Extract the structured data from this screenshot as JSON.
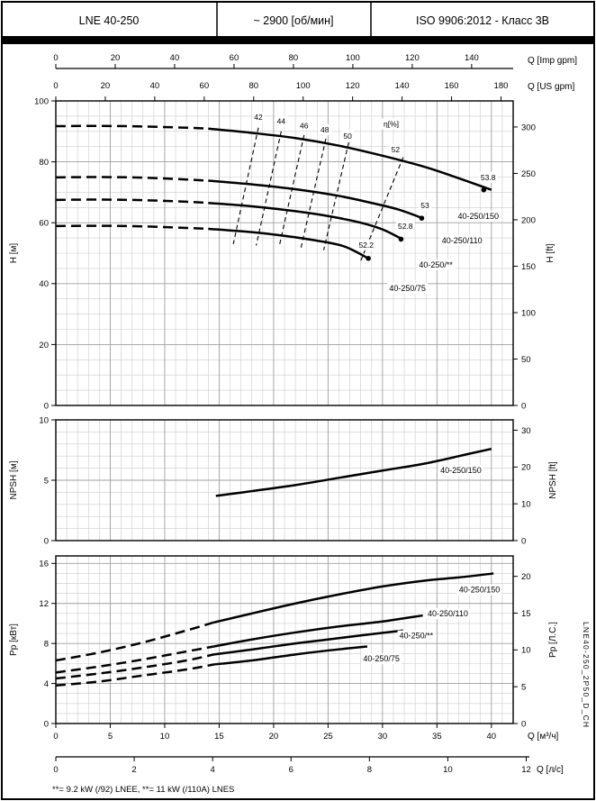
{
  "header": {
    "model": "LNE 40-250",
    "speed": "~ 2900 [об/мин]",
    "standard": "ISO 9906:2012 - Класс 3В"
  },
  "footer": {
    "note": "**= 9.2 kW (/92) LNEE,  **= 11 kW (/110A) LNES"
  },
  "side_label": "LNE40-250_2P50_D_CH",
  "axes": {
    "x_max_m3h": 42,
    "grid_x_minor": 1,
    "grid_x_major": 5,
    "top": [
      {
        "label": "Q [Imp gpm]",
        "m3h_per_unit": 0.27276,
        "ticks": [
          0,
          20,
          40,
          60,
          80,
          100,
          120,
          140
        ]
      },
      {
        "label": "Q [US gpm]",
        "m3h_per_unit": 0.22712,
        "ticks": [
          0,
          20,
          40,
          60,
          80,
          100,
          120,
          140,
          160,
          180
        ]
      }
    ],
    "bottom": [
      {
        "label": "Q [м³/ч]",
        "m3h_per_unit": 1,
        "ticks": [
          0,
          5,
          10,
          15,
          20,
          25,
          30,
          35,
          40
        ]
      },
      {
        "label": "Q [л/с]",
        "m3h_per_unit": 3.6,
        "ticks": [
          0,
          2,
          4,
          6,
          8,
          10,
          12
        ]
      }
    ]
  },
  "chart_data": [
    {
      "type": "line",
      "name": "head-flow",
      "ylabel_left": "H [м]",
      "ylabel_right": "H [ft]",
      "xlabel": "Q [м³/ч]",
      "ylim": [
        0,
        100
      ],
      "yticks_left": [
        0,
        20,
        40,
        60,
        80,
        100
      ],
      "yticks_right": [
        0,
        50,
        100,
        150,
        200,
        250,
        300
      ],
      "right_unit_per_left": 0.3048,
      "grid_minor_y": 5,
      "grid_major_y": 20,
      "series": [
        {
          "name": "40-250/150",
          "dash_until": 14,
          "label_at": [
            38.8,
            61.3
          ],
          "points": [
            [
              0,
              91.7
            ],
            [
              4,
              91.8
            ],
            [
              8,
              91.6
            ],
            [
              12,
              91.2
            ],
            [
              14,
              90.9
            ],
            [
              18,
              89.5
            ],
            [
              22,
              87.8
            ],
            [
              26,
              85.3
            ],
            [
              30,
              82.0
            ],
            [
              34,
              78.2
            ],
            [
              37,
              74.6
            ],
            [
              40,
              70.8
            ]
          ]
        },
        {
          "name": "40-250/110",
          "dash_until": 14,
          "label_at": [
            37.3,
            53.3
          ],
          "points": [
            [
              0,
              74.9
            ],
            [
              4,
              75.0
            ],
            [
              8,
              74.8
            ],
            [
              12,
              74.2
            ],
            [
              14,
              73.8
            ],
            [
              18,
              72.6
            ],
            [
              22,
              71.0
            ],
            [
              26,
              68.8
            ],
            [
              29,
              66.5
            ],
            [
              31.5,
              64.3
            ],
            [
              33.6,
              61.6
            ]
          ]
        },
        {
          "name": "40-250/**",
          "dash_until": 14,
          "label_at": [
            34.9,
            45.3
          ],
          "points": [
            [
              0,
              67.5
            ],
            [
              4,
              67.6
            ],
            [
              8,
              67.4
            ],
            [
              12,
              66.9
            ],
            [
              14,
              66.5
            ],
            [
              18,
              65.4
            ],
            [
              22,
              63.8
            ],
            [
              25,
              62.2
            ],
            [
              28,
              60.0
            ],
            [
              30,
              57.8
            ],
            [
              31.7,
              54.8
            ]
          ]
        },
        {
          "name": "40-250/75",
          "dash_until": 14,
          "label_at": [
            32.3,
            37.6
          ],
          "points": [
            [
              0,
              58.9
            ],
            [
              4,
              59.0
            ],
            [
              8,
              58.8
            ],
            [
              12,
              58.3
            ],
            [
              14,
              58.0
            ],
            [
              18,
              56.9
            ],
            [
              21,
              55.7
            ],
            [
              24,
              54.1
            ],
            [
              26.5,
              52.2
            ],
            [
              28.7,
              48.3
            ]
          ]
        }
      ],
      "efficiency_lines": [
        {
          "value": 42,
          "from": [
            18.6,
            91.2
          ],
          "to": [
            16.3,
            53.0
          ]
        },
        {
          "value": 44,
          "from": [
            20.7,
            90.0
          ],
          "to": [
            18.4,
            52.5
          ]
        },
        {
          "value": 46,
          "from": [
            22.8,
            88.8
          ],
          "to": [
            20.5,
            52.0
          ]
        },
        {
          "value": 48,
          "from": [
            24.8,
            87.6
          ],
          "to": [
            22.5,
            51.5
          ]
        },
        {
          "value": 50,
          "from": [
            26.9,
            86.4
          ],
          "to": [
            24.6,
            51.0
          ]
        },
        {
          "value": 52,
          "from": [
            31.9,
            81.5
          ],
          "to": [
            28.0,
            47.5
          ]
        }
      ],
      "annotations": [
        {
          "text": "42",
          "at": [
            18.6,
            93.8
          ]
        },
        {
          "text": "44",
          "at": [
            20.7,
            92.4
          ]
        },
        {
          "text": "46",
          "at": [
            22.8,
            91.0
          ]
        },
        {
          "text": "48",
          "at": [
            24.7,
            89.6
          ]
        },
        {
          "text": "50",
          "at": [
            26.8,
            87.6
          ]
        },
        {
          "text": "η[%]",
          "at": [
            30.8,
            91.6
          ]
        },
        {
          "text": "52",
          "at": [
            31.2,
            83.2
          ]
        }
      ],
      "markers": [
        {
          "value": "53.8",
          "at": [
            39.3,
            70.8
          ],
          "label_at": [
            39.7,
            74.0
          ]
        },
        {
          "value": "53",
          "at": [
            33.6,
            61.5
          ],
          "label_at": [
            33.9,
            64.8
          ]
        },
        {
          "value": "52.8",
          "at": [
            31.7,
            54.6
          ],
          "label_at": [
            32.1,
            58.0
          ]
        },
        {
          "value": "52.2",
          "at": [
            28.7,
            48.3
          ],
          "label_at": [
            28.5,
            51.8
          ]
        }
      ]
    },
    {
      "type": "line",
      "name": "npsh-flow",
      "ylabel_left": "NPSH [м]",
      "ylabel_right": "NPSH [ft]",
      "xlabel": "Q [м³/ч]",
      "ylim": [
        0,
        10
      ],
      "yticks_left": [
        0,
        5,
        10
      ],
      "yticks_right": [
        0,
        10,
        20,
        30
      ],
      "right_unit_per_left": 0.3048,
      "grid_minor_y": 1,
      "grid_major_y": 5,
      "series": [
        {
          "name": "40-250/150",
          "dash_until": null,
          "label_at": [
            37.2,
            5.6
          ],
          "points": [
            [
              14.7,
              3.7
            ],
            [
              18,
              4.1
            ],
            [
              22,
              4.6
            ],
            [
              26,
              5.2
            ],
            [
              30,
              5.8
            ],
            [
              34,
              6.4
            ],
            [
              38,
              7.2
            ],
            [
              40,
              7.6
            ]
          ]
        }
      ],
      "efficiency_lines": [],
      "annotations": [],
      "markers": []
    },
    {
      "type": "line",
      "name": "power-flow",
      "ylabel_left": "Pp [кВт]",
      "ylabel_right": "Pp [Л.С.]",
      "xlabel": "Q [м³/ч]",
      "ylim": [
        0,
        16
      ],
      "yticks_left": [
        0,
        4,
        8,
        12,
        16
      ],
      "yticks_right": [
        0,
        5,
        10,
        15,
        20
      ],
      "right_unit_per_left": 0.7355,
      "grid_minor_y": 1,
      "grid_major_y": 4,
      "series": [
        {
          "name": "40-250/150",
          "dash_until": 14.5,
          "label_at": [
            38.9,
            13.1
          ],
          "points": [
            [
              0,
              6.3
            ],
            [
              4,
              7.1
            ],
            [
              8,
              8.1
            ],
            [
              12,
              9.3
            ],
            [
              14.5,
              10.1
            ],
            [
              18,
              11.0
            ],
            [
              22,
              12.0
            ],
            [
              26,
              12.9
            ],
            [
              30,
              13.7
            ],
            [
              34,
              14.3
            ],
            [
              37,
              14.6
            ],
            [
              40.2,
              15.0
            ]
          ]
        },
        {
          "name": "40-250/110",
          "dash_until": 14.5,
          "label_at": [
            36.0,
            10.7
          ],
          "points": [
            [
              0,
              5.1
            ],
            [
              4,
              5.7
            ],
            [
              8,
              6.4
            ],
            [
              12,
              7.2
            ],
            [
              14.5,
              7.7
            ],
            [
              18,
              8.4
            ],
            [
              22,
              9.1
            ],
            [
              26,
              9.7
            ],
            [
              30,
              10.2
            ],
            [
              33.7,
              10.8
            ]
          ]
        },
        {
          "name": "40-250/**",
          "dash_until": 14.5,
          "label_at": [
            33.1,
            8.5
          ],
          "points": [
            [
              0,
              4.5
            ],
            [
              4,
              5.0
            ],
            [
              8,
              5.6
            ],
            [
              12,
              6.3
            ],
            [
              14.5,
              6.9
            ],
            [
              18,
              7.4
            ],
            [
              22,
              8.0
            ],
            [
              25,
              8.4
            ],
            [
              28,
              8.8
            ],
            [
              31.9,
              9.3
            ]
          ]
        },
        {
          "name": "40-250/75",
          "dash_until": 14.5,
          "label_at": [
            29.9,
            6.2
          ],
          "points": [
            [
              0,
              3.8
            ],
            [
              4,
              4.2
            ],
            [
              8,
              4.8
            ],
            [
              12,
              5.4
            ],
            [
              14.5,
              5.9
            ],
            [
              18,
              6.3
            ],
            [
              22,
              6.9
            ],
            [
              25,
              7.3
            ],
            [
              28.6,
              7.7
            ]
          ]
        }
      ],
      "efficiency_lines": [],
      "annotations": [],
      "markers": []
    }
  ]
}
